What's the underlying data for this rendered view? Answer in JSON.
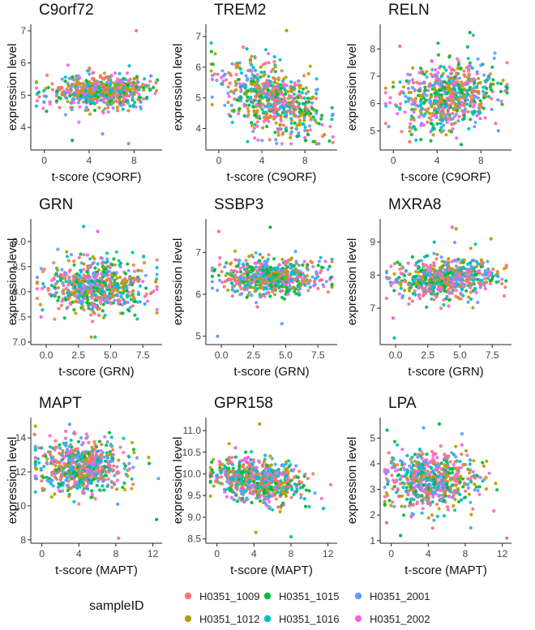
{
  "chart_data": {
    "type": "scatter",
    "legend": {
      "title": "sampleID",
      "position": "bottom",
      "entries": [
        {
          "id": "H0351_1009",
          "color": "#F8766D"
        },
        {
          "id": "H0351_1012",
          "color": "#B79F00"
        },
        {
          "id": "H0351_1015",
          "color": "#00BA38"
        },
        {
          "id": "H0351_1016",
          "color": "#00BFC4"
        },
        {
          "id": "H0351_2001",
          "color": "#619CFF"
        },
        {
          "id": "H0351_2002",
          "color": "#F564E3"
        }
      ]
    },
    "panels": [
      {
        "id": "c9orf72",
        "title": "C9orf72",
        "xlabel": "t-score (C9ORF)",
        "ylabel": "expression level",
        "xlim": [
          -1.2,
          10.5
        ],
        "ylim": [
          3.3,
          7.2
        ],
        "xticks": [
          0,
          4,
          8
        ],
        "xtick_labels": [
          "0",
          "4",
          "8"
        ],
        "yticks": [
          4,
          5,
          6,
          7
        ],
        "ytick_labels": [
          "4",
          "5",
          "6",
          "7"
        ],
        "cloud": {
          "n": 620,
          "x_mean": 4.9,
          "x_sd": 2.2,
          "y_mean": 5.1,
          "y_sd": 0.25,
          "slope": 0.0
        },
        "outliers": [
          [
            8.2,
            7.0
          ],
          [
            2.5,
            3.6
          ],
          [
            5.2,
            3.8
          ],
          [
            7.5,
            3.5
          ],
          [
            0.2,
            4.5
          ],
          [
            9.5,
            5.6
          ]
        ]
      },
      {
        "id": "trem2",
        "title": "TREM2",
        "xlabel": "t-score (C9ORF)",
        "ylabel": "expression level",
        "xlim": [
          -1.2,
          11.0
        ],
        "ylim": [
          3.3,
          7.4
        ],
        "xticks": [
          0,
          4,
          8
        ],
        "xtick_labels": [
          "0",
          "4",
          "8"
        ],
        "yticks": [
          4,
          5,
          6,
          7
        ],
        "ytick_labels": [
          "4",
          "5",
          "6",
          "7"
        ],
        "cloud": {
          "n": 620,
          "x_mean": 5.0,
          "x_sd": 2.2,
          "y_mean": 4.95,
          "y_sd": 0.55,
          "slope": -0.12
        },
        "outliers": [
          [
            6.3,
            7.2
          ],
          [
            2.6,
            6.6
          ],
          [
            8.0,
            3.7
          ],
          [
            9.8,
            3.8
          ],
          [
            10.5,
            4.3
          ],
          [
            -0.6,
            5.6
          ]
        ]
      },
      {
        "id": "reln",
        "title": "RELN",
        "xlabel": "t-score (C9ORF)",
        "ylabel": "expression level",
        "xlim": [
          -1.2,
          10.8
        ],
        "ylim": [
          4.3,
          8.9
        ],
        "xticks": [
          0,
          4,
          8
        ],
        "xtick_labels": [
          "0",
          "4",
          "8"
        ],
        "yticks": [
          5,
          6,
          7,
          8
        ],
        "ytick_labels": [
          "5",
          "6",
          "7",
          "8"
        ],
        "cloud": {
          "n": 620,
          "x_mean": 5.0,
          "x_sd": 2.2,
          "y_mean": 6.3,
          "y_sd": 0.6,
          "slope": 0.08
        },
        "outliers": [
          [
            7.0,
            8.6
          ],
          [
            7.3,
            8.5
          ],
          [
            0.6,
            8.1
          ],
          [
            6.2,
            4.5
          ],
          [
            9.6,
            5.0
          ],
          [
            1.5,
            4.6
          ]
        ]
      },
      {
        "id": "grn",
        "title": "GRN",
        "xlabel": "t-score (GRN)",
        "ylabel": "expression level",
        "xlim": [
          -1.2,
          9.0
        ],
        "ylim": [
          6.95,
          9.45
        ],
        "xticks": [
          0,
          2.5,
          5,
          7.5
        ],
        "xtick_labels": [
          "0.0",
          "2.5",
          "5.0",
          "7.5"
        ],
        "yticks": [
          7.0,
          7.5,
          8.0,
          8.5,
          9.0
        ],
        "ytick_labels": [
          "7.0",
          "7.5",
          "8.0",
          "8.5",
          "9.0"
        ],
        "cloud": {
          "n": 620,
          "x_mean": 3.9,
          "x_sd": 1.9,
          "y_mean": 8.1,
          "y_sd": 0.25,
          "slope": 0.0
        },
        "outliers": [
          [
            2.9,
            9.3
          ],
          [
            4.0,
            9.2
          ],
          [
            3.5,
            7.1
          ],
          [
            3.8,
            7.1
          ],
          [
            -0.4,
            7.5
          ],
          [
            8.5,
            8.2
          ]
        ]
      },
      {
        "id": "ssbp3",
        "title": "SSBP3",
        "xlabel": "t-score (GRN)",
        "ylabel": "expression level",
        "xlim": [
          -1.2,
          9.0
        ],
        "ylim": [
          4.8,
          7.8
        ],
        "xticks": [
          0,
          2.5,
          5,
          7.5
        ],
        "xtick_labels": [
          "0.0",
          "2.5",
          "5.0",
          "7.5"
        ],
        "yticks": [
          5,
          6,
          7
        ],
        "ytick_labels": [
          "5",
          "6",
          "7"
        ],
        "cloud": {
          "n": 620,
          "x_mean": 3.9,
          "x_sd": 1.9,
          "y_mean": 6.4,
          "y_sd": 0.22,
          "slope": 0.0
        },
        "outliers": [
          [
            -0.3,
            5.0
          ],
          [
            -0.2,
            7.5
          ],
          [
            3.8,
            7.6
          ],
          [
            4.7,
            5.3
          ],
          [
            2.8,
            5.7
          ],
          [
            8.5,
            6.4
          ]
        ]
      },
      {
        "id": "mxra8",
        "title": "MXRA8",
        "xlabel": "t-score (GRN)",
        "ylabel": "expression level",
        "xlim": [
          -1.2,
          9.0
        ],
        "ylim": [
          5.9,
          9.7
        ],
        "xticks": [
          0,
          2.5,
          5,
          7.5
        ],
        "xtick_labels": [
          "0.0",
          "2.5",
          "5.0",
          "7.5"
        ],
        "yticks": [
          7,
          8,
          9
        ],
        "ytick_labels": [
          "7",
          "8",
          "9"
        ],
        "cloud": {
          "n": 620,
          "x_mean": 3.9,
          "x_sd": 1.9,
          "y_mean": 7.9,
          "y_sd": 0.3,
          "slope": 0.02
        },
        "outliers": [
          [
            4.4,
            9.45
          ],
          [
            4.7,
            9.4
          ],
          [
            -0.1,
            6.1
          ],
          [
            -0.2,
            6.7
          ],
          [
            7.4,
            9.1
          ],
          [
            3.0,
            9.0
          ]
        ]
      },
      {
        "id": "mapt",
        "title": "MAPT",
        "xlabel": "t-score (MAPT)",
        "ylabel": "expression level",
        "xlim": [
          -1.2,
          13.0
        ],
        "ylim": [
          7.8,
          15.2
        ],
        "xticks": [
          0,
          4,
          8,
          12
        ],
        "xtick_labels": [
          "0",
          "4",
          "8",
          "12"
        ],
        "yticks": [
          8,
          10,
          12,
          14
        ],
        "ytick_labels": [
          "8",
          "10",
          "12",
          "14"
        ],
        "cloud": {
          "n": 620,
          "x_mean": 4.3,
          "x_sd": 2.4,
          "y_mean": 12.3,
          "y_sd": 0.75,
          "slope": 0.0
        },
        "outliers": [
          [
            8.3,
            8.1
          ],
          [
            12.4,
            9.2
          ],
          [
            3.0,
            14.8
          ],
          [
            -0.8,
            14.2
          ],
          [
            11.6,
            12.5
          ],
          [
            8.2,
            10.1
          ]
        ]
      },
      {
        "id": "gpr158",
        "title": "GPR158",
        "xlabel": "t-score (MAPT)",
        "ylabel": "expression level",
        "xlim": [
          -1.2,
          13.0
        ],
        "ylim": [
          8.4,
          11.3
        ],
        "xticks": [
          0,
          4,
          8,
          12
        ],
        "xtick_labels": [
          "0",
          "4",
          "8",
          "12"
        ],
        "yticks": [
          8.5,
          9.0,
          9.5,
          10.0,
          10.5,
          11.0
        ],
        "ytick_labels": [
          "8.5",
          "9.0",
          "9.5",
          "10.0",
          "10.5",
          "11.0"
        ],
        "cloud": {
          "n": 620,
          "x_mean": 4.3,
          "x_sd": 2.4,
          "y_mean": 9.85,
          "y_sd": 0.25,
          "slope": -0.03
        },
        "outliers": [
          [
            4.6,
            11.15
          ],
          [
            8.0,
            8.55
          ],
          [
            12.3,
            9.75
          ],
          [
            4.2,
            8.65
          ],
          [
            11.5,
            9.2
          ],
          [
            2.0,
            10.6
          ]
        ]
      },
      {
        "id": "lpa",
        "title": "LPA",
        "xlabel": "t-score (MAPT)",
        "ylabel": "expression level",
        "xlim": [
          -1.2,
          13.0
        ],
        "ylim": [
          0.9,
          5.8
        ],
        "xticks": [
          0,
          4,
          8,
          12
        ],
        "xtick_labels": [
          "0",
          "4",
          "8",
          "12"
        ],
        "yticks": [
          1,
          2,
          3,
          4,
          5
        ],
        "ytick_labels": [
          "1",
          "2",
          "3",
          "4",
          "5"
        ],
        "cloud": {
          "n": 620,
          "x_mean": 4.3,
          "x_sd": 2.4,
          "y_mean": 3.35,
          "y_sd": 0.55,
          "slope": 0.0
        },
        "outliers": [
          [
            5.2,
            5.55
          ],
          [
            3.5,
            5.4
          ],
          [
            12.5,
            1.1
          ],
          [
            1.0,
            1.2
          ],
          [
            8.6,
            1.5
          ],
          [
            -0.5,
            1.7
          ]
        ]
      }
    ]
  }
}
